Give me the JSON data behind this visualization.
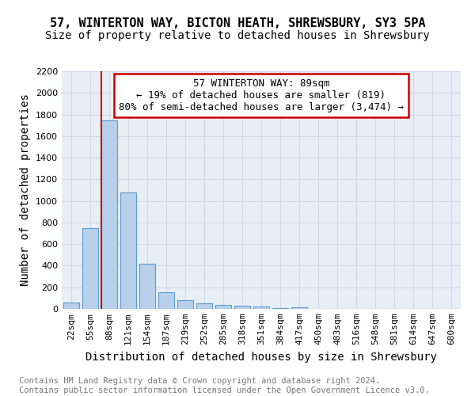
{
  "title1": "57, WINTERTON WAY, BICTON HEATH, SHREWSBURY, SY3 5PA",
  "title2": "Size of property relative to detached houses in Shrewsbury",
  "xlabel": "Distribution of detached houses by size in Shrewsbury",
  "ylabel": "Number of detached properties",
  "categories": [
    "22sqm",
    "55sqm",
    "88sqm",
    "121sqm",
    "154sqm",
    "187sqm",
    "219sqm",
    "252sqm",
    "285sqm",
    "318sqm",
    "351sqm",
    "384sqm",
    "417sqm",
    "450sqm",
    "483sqm",
    "516sqm",
    "548sqm",
    "581sqm",
    "614sqm",
    "647sqm",
    "680sqm"
  ],
  "values": [
    60,
    750,
    1745,
    1075,
    415,
    155,
    80,
    48,
    38,
    30,
    20,
    5,
    15,
    0,
    0,
    0,
    0,
    0,
    0,
    0,
    0
  ],
  "bar_color": "#b8d0ea",
  "bar_edge_color": "#5b9bd5",
  "property_bar_index": 2,
  "vline_color": "#cc0000",
  "annotation_text": "57 WINTERTON WAY: 89sqm\n← 19% of detached houses are smaller (819)\n80% of semi-detached houses are larger (3,474) →",
  "annotation_box_color": "#ffffff",
  "annotation_box_edge": "#cc0000",
  "ylim": [
    0,
    2200
  ],
  "yticks": [
    0,
    200,
    400,
    600,
    800,
    1000,
    1200,
    1400,
    1600,
    1800,
    2000,
    2200
  ],
  "grid_color": "#d0d8e8",
  "background_color": "#e8eef5",
  "footer_text": "Contains HM Land Registry data © Crown copyright and database right 2024.\nContains public sector information licensed under the Open Government Licence v3.0.",
  "title1_fontsize": 11,
  "title2_fontsize": 10,
  "axis_label_fontsize": 10,
  "tick_fontsize": 8,
  "annotation_fontsize": 9,
  "footer_fontsize": 7.5
}
